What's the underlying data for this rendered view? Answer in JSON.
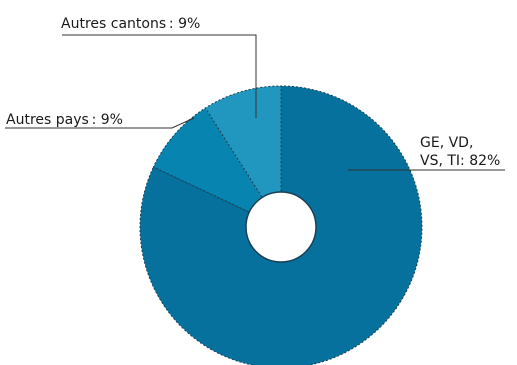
{
  "chart_data": {
    "type": "pie",
    "categories": [
      "GE, VD, VS, TI",
      "Autres pays",
      "Autres cantons"
    ],
    "values": [
      82,
      9,
      9
    ],
    "unit": "%",
    "labels": [
      {
        "lines": [
          "GE, VD,",
          "VS, TI: 82%"
        ]
      },
      {
        "lines": [
          "Autres pays : 9%"
        ]
      },
      {
        "lines": [
          "Autres cantons : 9%"
        ]
      }
    ],
    "colors": [
      "#06719d",
      "#0785b0",
      "#2197bf"
    ],
    "hole_color": "#ffffff",
    "legend": "none"
  }
}
